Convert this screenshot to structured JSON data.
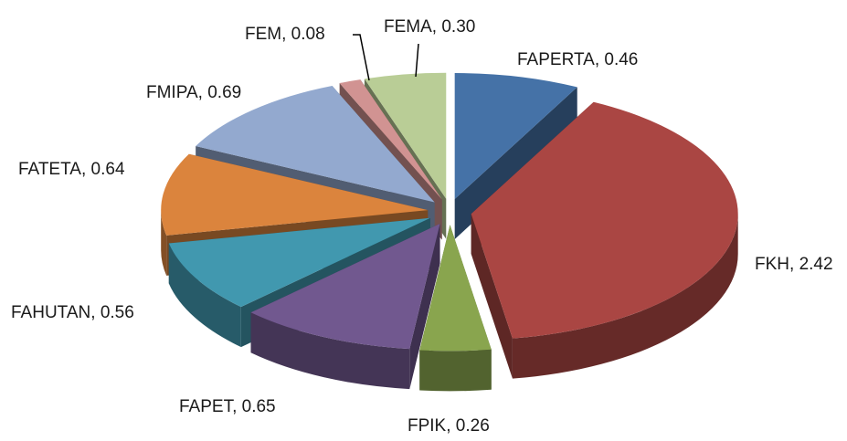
{
  "chart_data": {
    "type": "pie3d",
    "categories": [
      "FAPERTA",
      "FKH",
      "FPIK",
      "FAPET",
      "FAHUTAN",
      "FATETA",
      "FMIPA",
      "FEM",
      "FEMA"
    ],
    "values": [
      0.46,
      2.42,
      0.26,
      0.65,
      0.56,
      0.64,
      0.69,
      0.08,
      0.3
    ],
    "value_labels": [
      "0.46",
      "2.42",
      "0.26",
      "0.65",
      "0.56",
      "0.64",
      "0.69",
      "0.08",
      "0.30"
    ],
    "colors": [
      "#4572A7",
      "#AA4643",
      "#89A54E",
      "#71588F",
      "#4198AF",
      "#DB843D",
      "#93A9CF",
      "#D19392",
      "#B9CD96"
    ]
  }
}
